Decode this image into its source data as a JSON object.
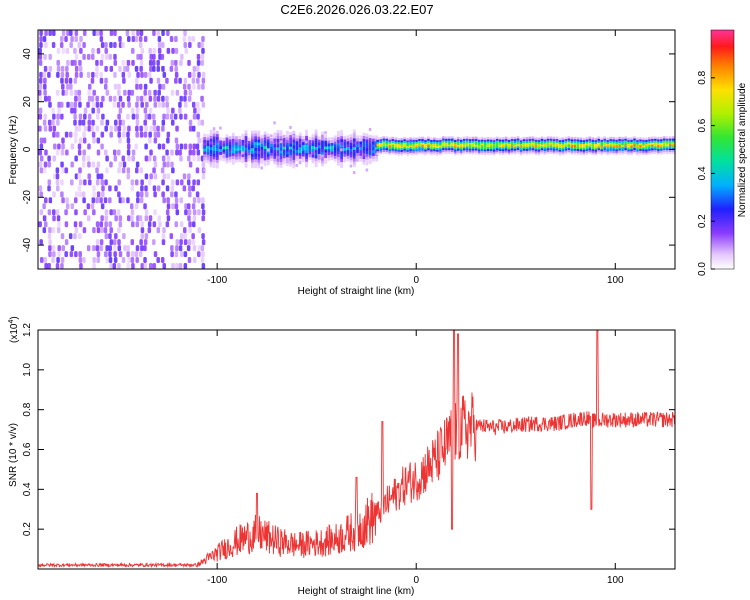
{
  "title": "C2E6.2026.026.03.22.E07",
  "chart_data": [
    {
      "type": "heatmap",
      "xlabel": "Height of straight line (km)",
      "ylabel": "Frequency (Hz)",
      "xlim": [
        -190,
        130
      ],
      "ylim": [
        -50,
        50
      ],
      "xticks": [
        -100,
        0,
        100
      ],
      "yticks": [
        -40,
        -20,
        0,
        20,
        40
      ],
      "colorbar": {
        "label": "Normalized spectral amplitude",
        "range": [
          0,
          1
        ],
        "ticks": [
          0.0,
          0.2,
          0.4,
          0.6,
          0.8
        ]
      },
      "regions": [
        {
          "x_range": [
            -190,
            -107
          ],
          "f_range": [
            -50,
            50
          ],
          "amplitude": 0.1
        },
        {
          "x_range": [
            -107,
            -20
          ],
          "f_center": 0,
          "f_halfwidth": 6,
          "amplitude": 0.3
        },
        {
          "x_range": [
            -20,
            130
          ],
          "f_center": 1.5,
          "f_halfwidth": 2,
          "amplitude": 0.85
        }
      ]
    },
    {
      "type": "line",
      "xlabel": "Height of straight line (km)",
      "ylabel": "SNR (10 * v/v)",
      "scale_label": "(x10",
      "scale_exp": "4",
      "scale_close": ")",
      "xlim": [
        -190,
        130
      ],
      "ylim": [
        0,
        1.2
      ],
      "xticks": [
        -100,
        0,
        100
      ],
      "yticks": [
        0.2,
        0.4,
        0.6,
        0.8,
        1.0,
        1.2
      ],
      "color": "#ee3333",
      "envelope": {
        "x": [
          -190,
          -110,
          -100,
          -90,
          -80,
          -70,
          -60,
          -50,
          -40,
          -30,
          -20,
          -15,
          -10,
          -5,
          0,
          5,
          10,
          15,
          20,
          25,
          30,
          40,
          50,
          60,
          70,
          80,
          85,
          90,
          95,
          100,
          110,
          120,
          130
        ],
        "y": [
          0.02,
          0.02,
          0.08,
          0.14,
          0.18,
          0.14,
          0.12,
          0.13,
          0.15,
          0.2,
          0.27,
          0.33,
          0.38,
          0.43,
          0.45,
          0.5,
          0.55,
          0.62,
          0.69,
          0.71,
          0.72,
          0.71,
          0.72,
          0.73,
          0.73,
          0.75,
          0.76,
          0.74,
          0.75,
          0.75,
          0.75,
          0.75,
          0.75
        ]
      },
      "spikes": [
        {
          "x": 19,
          "y": 1.2
        },
        {
          "x": 21,
          "y": 1.18
        },
        {
          "x": 91,
          "y": 1.2
        },
        {
          "x": 88,
          "y": 0.3
        },
        {
          "x": 18,
          "y": 0.2
        },
        {
          "x": -80,
          "y": 0.38
        },
        {
          "x": -17,
          "y": 0.74
        },
        {
          "x": -30,
          "y": 0.46
        }
      ]
    }
  ]
}
